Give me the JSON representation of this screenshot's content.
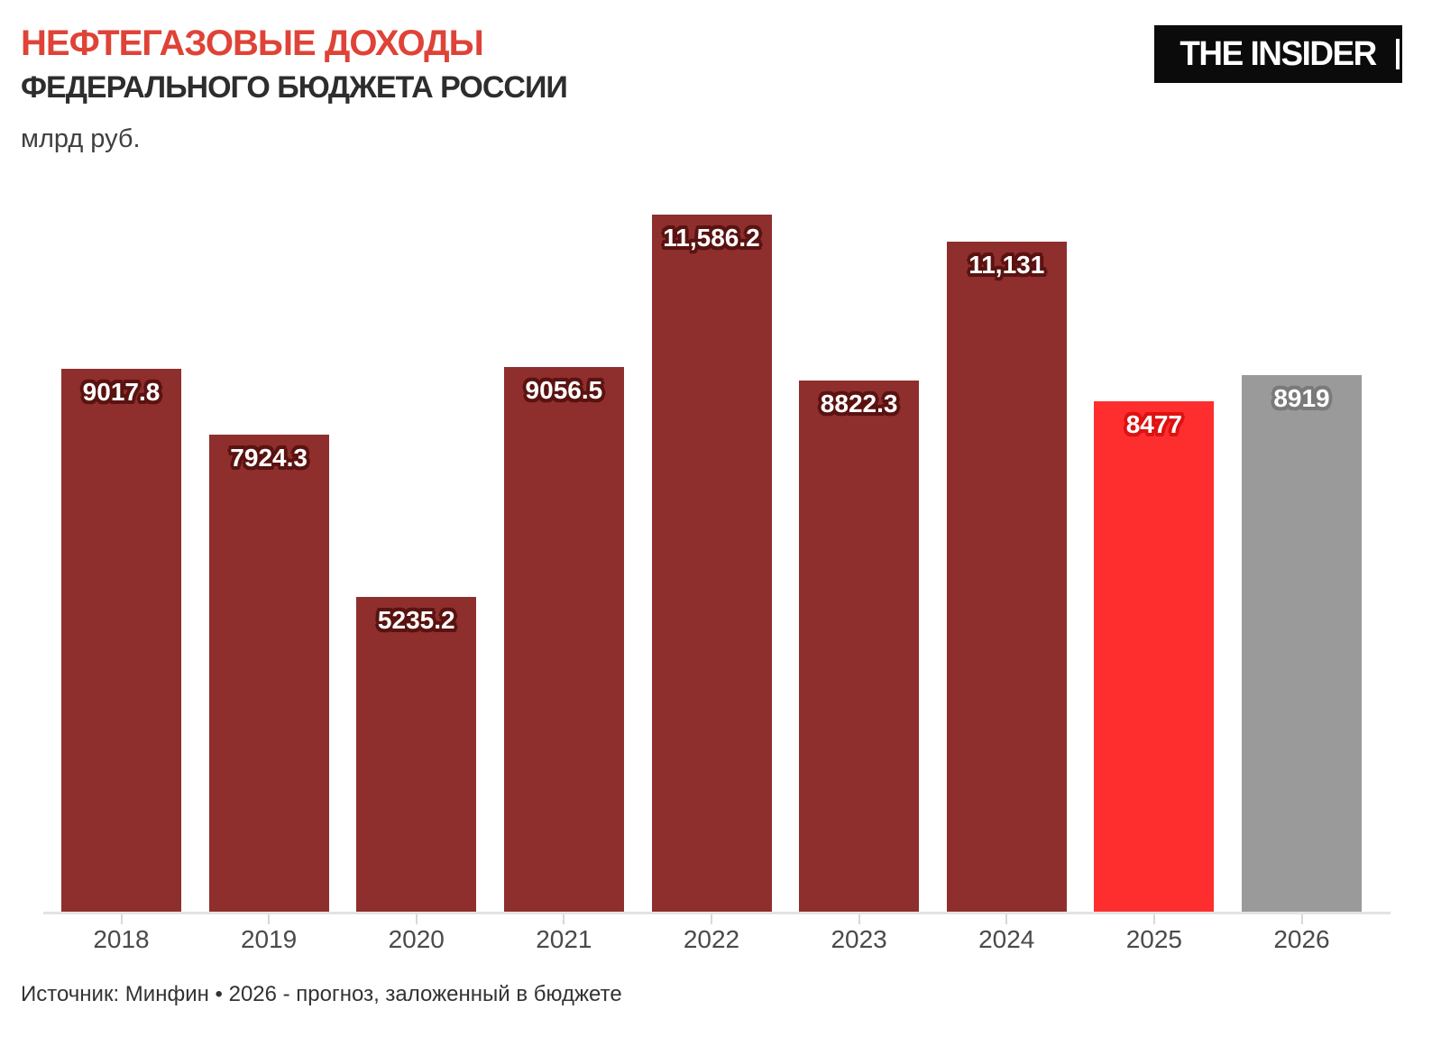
{
  "header": {
    "title_line1": "НЕФТЕГАЗОВЫЕ ДОХОДЫ",
    "title_line2": "ФЕДЕРАЛЬНОГО БЮДЖЕТА РОССИИ",
    "subtitle": "млрд руб.",
    "logo_text": "THE INSIDER"
  },
  "footer": {
    "source": "Источник: Минфин • 2026 - прогноз, заложенный в бюджете"
  },
  "colors": {
    "title_accent": "#df4337",
    "title_dark": "#2d2d2d",
    "bar_default": "#8e2f2d",
    "bar_default_halo": "#5a1311",
    "bar_highlight": "#ff2e2e",
    "bar_highlight_halo": "#dd1212",
    "bar_forecast": "#9a9a9a",
    "bar_forecast_halo": "#7a7a7a",
    "axis_line": "#e3e3e3",
    "tick": "#d8d8d8",
    "label_text": "#ffffff"
  },
  "chart_data": {
    "type": "bar",
    "title": "НЕФТЕГАЗОВЫЕ ДОХОДЫ ФЕДЕРАЛЬНОГО БЮДЖЕТА РОССИИ",
    "ylabel": "млрд руб.",
    "xlabel": "",
    "categories": [
      "2018",
      "2019",
      "2020",
      "2021",
      "2022",
      "2023",
      "2024",
      "2025",
      "2026"
    ],
    "values": [
      9017.8,
      7924.3,
      5235.2,
      9056.5,
      11586.2,
      8822.3,
      11131,
      8477,
      8919
    ],
    "value_labels": [
      "9017.8",
      "7924.3",
      "5235.2",
      "9056.5",
      "11,586.2",
      "8822.3",
      "11,131",
      "8477",
      "8919"
    ],
    "bar_roles": [
      "default",
      "default",
      "default",
      "default",
      "default",
      "default",
      "default",
      "highlight",
      "forecast"
    ],
    "ylim": [
      0,
      11586.2
    ],
    "grid": false,
    "legend": false,
    "source": "Источник: Минфин • 2026 - прогноз, заложенный в бюджете"
  }
}
